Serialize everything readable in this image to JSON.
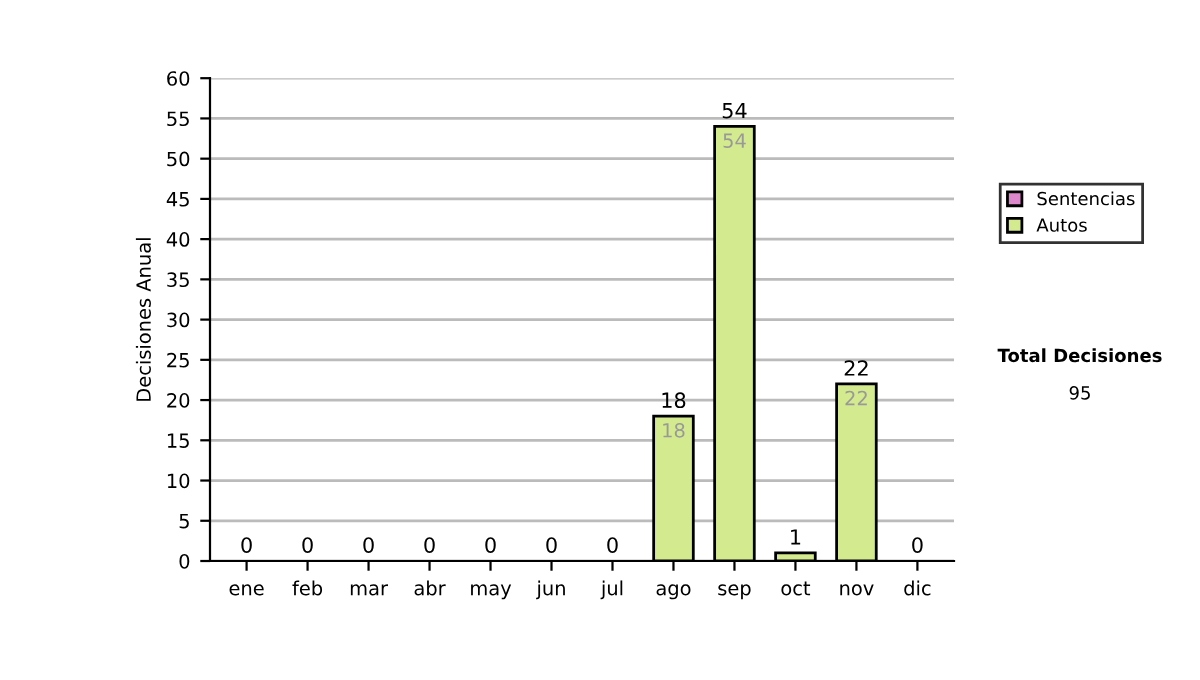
{
  "chart_data": {
    "type": "bar",
    "stacked": true,
    "ylabel": "Decisiones Anual",
    "categories": [
      "ene",
      "feb",
      "mar",
      "abr",
      "may",
      "jun",
      "jul",
      "ago",
      "sep",
      "oct",
      "nov",
      "dic"
    ],
    "series": [
      {
        "name": "Sentencias",
        "color": "#dd88cc",
        "values": [
          0,
          0,
          0,
          0,
          0,
          0,
          0,
          0,
          0,
          0,
          0,
          0
        ]
      },
      {
        "name": "Autos",
        "color": "#d4ea8e",
        "values": [
          0,
          0,
          0,
          0,
          0,
          0,
          0,
          18,
          54,
          1,
          22,
          0
        ],
        "value_labels": [
          null,
          null,
          null,
          null,
          null,
          null,
          null,
          "18",
          "54",
          null,
          "22",
          null
        ]
      }
    ],
    "totals": [
      "0",
      "0",
      "0",
      "0",
      "0",
      "0",
      "0",
      "18",
      "54",
      "1",
      "22",
      "0"
    ],
    "ylim": [
      0,
      60
    ],
    "yticks": [
      0,
      5,
      10,
      15,
      20,
      25,
      30,
      35,
      40,
      45,
      50,
      55,
      60
    ],
    "grid": "y",
    "legend": "right",
    "annotations": [
      "Total Decisiones",
      "95"
    ]
  }
}
